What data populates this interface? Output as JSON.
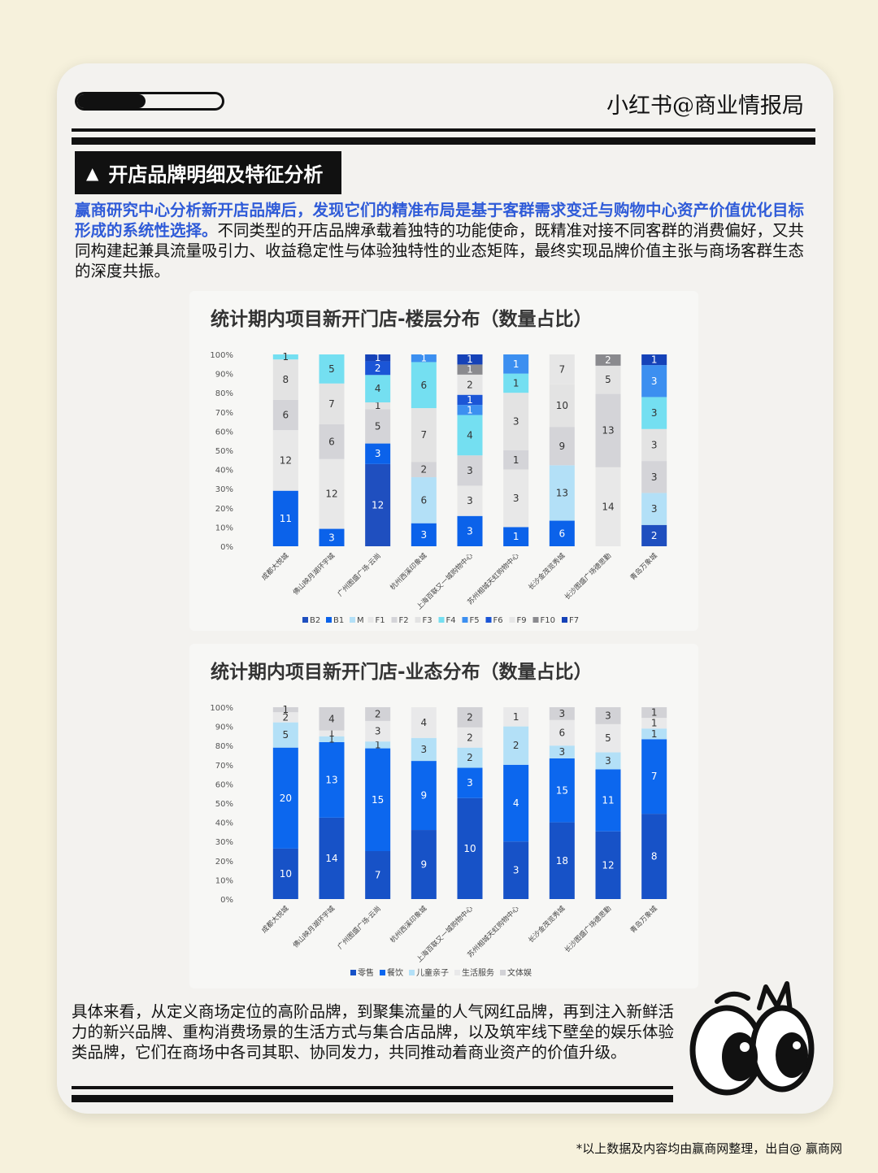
{
  "header": {
    "handle": "小红书@商业情报局",
    "progress": 0.47
  },
  "section": {
    "heading": "开店品牌明细及特征分析",
    "intro_highlight": "赢商研究中心分析新开店品牌后，发现它们的精准布局是基于客群需求变迁与购物中心资产价值优化目标形成的系统性选择。",
    "intro_rest": "不同类型的开店品牌承载着独特的功能使命，既精准对接不同客群的消费偏好，又共同构建起兼具流量吸引力、收益稳定性与体验独特性的业态矩阵，最终实现品牌价值主张与商场客群生态的深度共振。",
    "outro": "具体来看，从定义商场定位的高阶品牌，到聚集流量的人气网红品牌，再到注入新鲜活力的新兴品牌、重构消费场景的生活方式与集合店品牌，以及筑牢线下壁垒的娱乐体验类品牌，它们在商场中各司其职、协同发力，共同推动着商业资产的价值升级。"
  },
  "footer": {
    "note": "*以上数据及内容均由赢商网整理，出自@ 赢商网"
  },
  "chart_data": [
    {
      "type": "bar",
      "stacked": "percent",
      "title": "统计期内项目新开门店-楼层分布（数量占比）",
      "yticks": [
        "0%",
        "10%",
        "20%",
        "30%",
        "40%",
        "50%",
        "60%",
        "70%",
        "80%",
        "90%",
        "100%"
      ],
      "legend_position": "bottom",
      "categories": [
        "成都大悦城",
        "佛山映月湖环宇城",
        "广州图盛广场·云尚",
        "杭州西溪印象城",
        "上海百联又一城购物中心",
        "苏州相城天虹购物中心",
        "长沙金茂览秀城",
        "长沙图盛广场德思勤",
        "青岛万象城"
      ],
      "series": [
        {
          "name": "B2",
          "color": "#1f4fbf",
          "values": [
            0,
            0,
            12,
            0,
            0,
            0,
            0,
            0,
            2
          ]
        },
        {
          "name": "B1",
          "color": "#0b62ea",
          "values": [
            11,
            3,
            3,
            3,
            3,
            1,
            6,
            0,
            0
          ]
        },
        {
          "name": "M",
          "color": "#b3e0f7",
          "values": [
            0,
            0,
            0,
            6,
            0,
            0,
            13,
            0,
            3
          ]
        },
        {
          "name": "F1",
          "color": "#e8e8e8",
          "values": [
            12,
            12,
            0,
            0,
            3,
            3,
            0,
            14,
            0
          ]
        },
        {
          "name": "F2",
          "color": "#d4d4d8",
          "values": [
            6,
            6,
            5,
            2,
            3,
            1,
            9,
            13,
            3
          ]
        },
        {
          "name": "F3",
          "color": "#e3e3e3",
          "values": [
            8,
            7,
            1,
            7,
            0,
            3,
            10,
            5,
            3
          ]
        },
        {
          "name": "F4",
          "color": "#74dff1",
          "values": [
            1,
            5,
            4,
            6,
            4,
            1,
            0,
            0,
            3
          ]
        },
        {
          "name": "F5",
          "color": "#3c8ff0",
          "values": [
            0,
            0,
            0,
            1,
            1,
            1,
            0,
            0,
            3
          ]
        },
        {
          "name": "F6",
          "color": "#1b55d6",
          "values": [
            0,
            0,
            2,
            0,
            1,
            0,
            0,
            0,
            0
          ]
        },
        {
          "name": "F9",
          "color": "#e6e6e6",
          "values": [
            0,
            0,
            0,
            0,
            2,
            0,
            7,
            0,
            0
          ]
        },
        {
          "name": "F10",
          "color": "#8a8a8e",
          "values": [
            0,
            0,
            0,
            0,
            1,
            0,
            0,
            2,
            0
          ]
        },
        {
          "name": "F7",
          "color": "#1542b8",
          "values": [
            0,
            0,
            1,
            0,
            1,
            0,
            0,
            0,
            1
          ]
        }
      ]
    },
    {
      "type": "bar",
      "stacked": "percent",
      "title": "统计期内项目新开门店-业态分布（数量占比）",
      "yticks": [
        "0%",
        "10%",
        "20%",
        "30%",
        "40%",
        "50%",
        "60%",
        "70%",
        "80%",
        "90%",
        "100%"
      ],
      "legend_position": "bottom",
      "categories": [
        "成都大悦城",
        "佛山映月湖环宇城",
        "广州图盛广场·云尚",
        "杭州西溪印象城",
        "上海百联又一城购物中心",
        "苏州相城天虹购物中心",
        "长沙金茂览秀城",
        "长沙图盛广场德思勤",
        "青岛万象城"
      ],
      "series": [
        {
          "name": "零售",
          "color": "#1752c7",
          "values": [
            10,
            14,
            7,
            9,
            10,
            3,
            18,
            12,
            8
          ]
        },
        {
          "name": "餐饮",
          "color": "#0c67ee",
          "values": [
            20,
            13,
            15,
            9,
            3,
            4,
            15,
            11,
            7
          ]
        },
        {
          "name": "儿童亲子",
          "color": "#b3e0f7",
          "values": [
            5,
            1,
            1,
            3,
            2,
            2,
            3,
            3,
            1
          ]
        },
        {
          "name": "生活服务",
          "color": "#e9e9ea",
          "values": [
            2,
            1,
            3,
            4,
            2,
            1,
            6,
            5,
            1
          ]
        },
        {
          "name": "文体娱",
          "color": "#d2d2d6",
          "values": [
            1,
            4,
            2,
            0,
            2,
            0,
            3,
            3,
            1
          ]
        }
      ]
    }
  ]
}
